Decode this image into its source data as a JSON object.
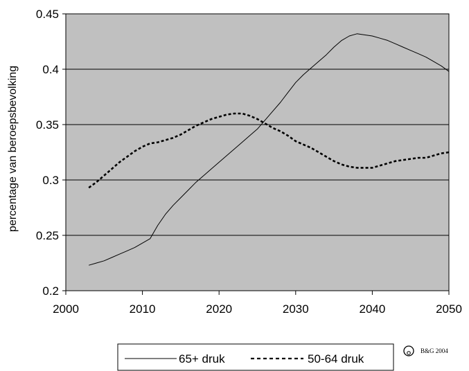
{
  "chart_data": {
    "type": "line",
    "title": "",
    "xlabel": "",
    "ylabel": "percentage van beroepsbevolking",
    "xlim": [
      2000,
      2050
    ],
    "ylim": [
      0.2,
      0.45
    ],
    "x_ticks": [
      "2000",
      "2010",
      "2020",
      "2030",
      "2040",
      "2050"
    ],
    "y_ticks": [
      "0.2",
      "0.25",
      "0.3",
      "0.35",
      "0.4",
      "0.45"
    ],
    "grid": "horizontal",
    "background": "#c0c0c0",
    "legend_position": "bottom",
    "series": [
      {
        "name": "65+ druk",
        "style": "solid",
        "color": "#000000",
        "points": [
          [
            2003,
            0.223
          ],
          [
            2004,
            0.225
          ],
          [
            2005,
            0.227
          ],
          [
            2006,
            0.23
          ],
          [
            2007,
            0.233
          ],
          [
            2008,
            0.236
          ],
          [
            2009,
            0.239
          ],
          [
            2010,
            0.243
          ],
          [
            2011,
            0.247
          ],
          [
            2012,
            0.259
          ],
          [
            2013,
            0.269
          ],
          [
            2014,
            0.277
          ],
          [
            2015,
            0.284
          ],
          [
            2016,
            0.291
          ],
          [
            2017,
            0.298
          ],
          [
            2018,
            0.304
          ],
          [
            2019,
            0.31
          ],
          [
            2020,
            0.316
          ],
          [
            2021,
            0.322
          ],
          [
            2022,
            0.328
          ],
          [
            2023,
            0.334
          ],
          [
            2024,
            0.34
          ],
          [
            2025,
            0.346
          ],
          [
            2026,
            0.354
          ],
          [
            2027,
            0.362
          ],
          [
            2028,
            0.37
          ],
          [
            2029,
            0.379
          ],
          [
            2030,
            0.388
          ],
          [
            2031,
            0.395
          ],
          [
            2032,
            0.401
          ],
          [
            2033,
            0.407
          ],
          [
            2034,
            0.413
          ],
          [
            2035,
            0.42
          ],
          [
            2036,
            0.426
          ],
          [
            2037,
            0.43
          ],
          [
            2038,
            0.432
          ],
          [
            2039,
            0.431
          ],
          [
            2040,
            0.43
          ],
          [
            2041,
            0.428
          ],
          [
            2042,
            0.426
          ],
          [
            2043,
            0.423
          ],
          [
            2044,
            0.42
          ],
          [
            2045,
            0.417
          ],
          [
            2046,
            0.414
          ],
          [
            2047,
            0.411
          ],
          [
            2048,
            0.407
          ],
          [
            2049,
            0.403
          ],
          [
            2050,
            0.398
          ]
        ]
      },
      {
        "name": "50-64 druk",
        "style": "dashed",
        "color": "#000000",
        "points": [
          [
            2003,
            0.293
          ],
          [
            2004,
            0.298
          ],
          [
            2005,
            0.304
          ],
          [
            2006,
            0.31
          ],
          [
            2007,
            0.316
          ],
          [
            2008,
            0.321
          ],
          [
            2009,
            0.326
          ],
          [
            2010,
            0.33
          ],
          [
            2011,
            0.333
          ],
          [
            2012,
            0.334
          ],
          [
            2013,
            0.336
          ],
          [
            2014,
            0.338
          ],
          [
            2015,
            0.341
          ],
          [
            2016,
            0.345
          ],
          [
            2017,
            0.349
          ],
          [
            2018,
            0.352
          ],
          [
            2019,
            0.355
          ],
          [
            2020,
            0.357
          ],
          [
            2021,
            0.359
          ],
          [
            2022,
            0.36
          ],
          [
            2023,
            0.36
          ],
          [
            2024,
            0.358
          ],
          [
            2025,
            0.355
          ],
          [
            2026,
            0.351
          ],
          [
            2027,
            0.347
          ],
          [
            2028,
            0.344
          ],
          [
            2029,
            0.34
          ],
          [
            2030,
            0.335
          ],
          [
            2031,
            0.332
          ],
          [
            2032,
            0.329
          ],
          [
            2033,
            0.325
          ],
          [
            2034,
            0.321
          ],
          [
            2035,
            0.317
          ],
          [
            2036,
            0.314
          ],
          [
            2037,
            0.312
          ],
          [
            2038,
            0.311
          ],
          [
            2039,
            0.311
          ],
          [
            2040,
            0.311
          ],
          [
            2041,
            0.313
          ],
          [
            2042,
            0.315
          ],
          [
            2043,
            0.317
          ],
          [
            2044,
            0.318
          ],
          [
            2045,
            0.319
          ],
          [
            2046,
            0.32
          ],
          [
            2047,
            0.32
          ],
          [
            2048,
            0.322
          ],
          [
            2049,
            0.324
          ],
          [
            2050,
            0.325
          ]
        ]
      }
    ]
  },
  "copyright": "B&G 2004",
  "copyright_icon": "copyright-circle-icon"
}
